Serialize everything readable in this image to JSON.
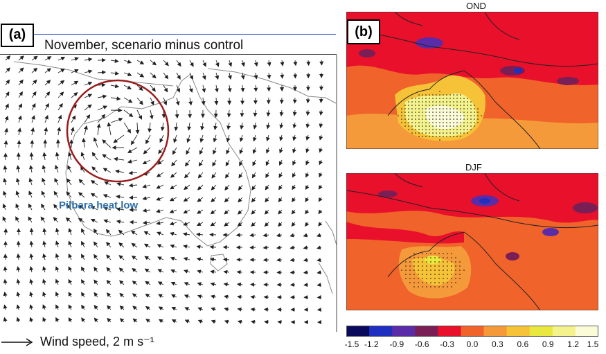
{
  "panel_a": {
    "label": "(a)",
    "title": "November, scenario minus control",
    "annotation": "Pilbara heat low",
    "annotation_color": "#2e6fa7",
    "circle_color": "#9b1c1c",
    "wind_legend_text": "Wind speed, 2 m s⁻¹"
  },
  "panel_b": {
    "label": "(b)",
    "maps": [
      {
        "title": "OND"
      },
      {
        "title": "DJF"
      }
    ],
    "colorbar": {
      "ticks": [
        "-1.5",
        "-1.2",
        "-0.9",
        "-0.6",
        "-0.3",
        "0.0",
        "0.3",
        "0.6",
        "0.9",
        "1.2",
        "1.5"
      ],
      "colors": [
        "#0a0a5c",
        "#1f2fbf",
        "#5b2ca8",
        "#7a1f55",
        "#e8102a",
        "#f0632a",
        "#f59a3a",
        "#f6c238",
        "#e9e83e",
        "#f3f28c",
        "#fbfbd8"
      ]
    }
  }
}
